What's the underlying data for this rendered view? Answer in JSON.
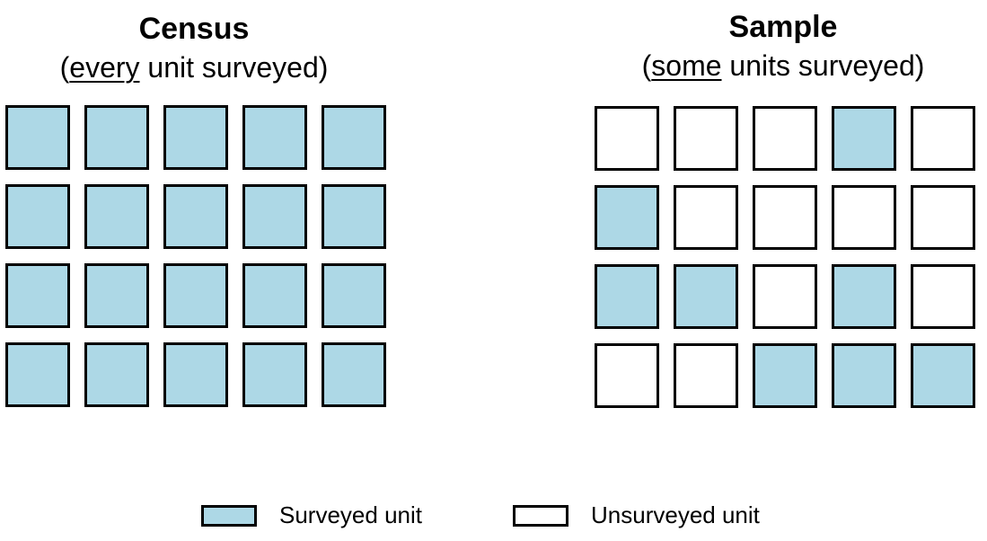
{
  "colors": {
    "surveyed": "#ADD8E6",
    "unsurveyed": "#FFFFFF",
    "outline": "#000000"
  },
  "census": {
    "title": "Census",
    "subtitle_open": "(",
    "subtitle_emph": "every",
    "subtitle_rest": " unit surveyed)",
    "grid": [
      [
        1,
        1,
        1,
        1,
        1
      ],
      [
        1,
        1,
        1,
        1,
        1
      ],
      [
        1,
        1,
        1,
        1,
        1
      ],
      [
        1,
        1,
        1,
        1,
        1
      ]
    ]
  },
  "sample": {
    "title": "Sample",
    "subtitle_open": "(",
    "subtitle_emph": "some",
    "subtitle_rest": " units surveyed)",
    "grid": [
      [
        0,
        0,
        0,
        1,
        0
      ],
      [
        1,
        0,
        0,
        0,
        0
      ],
      [
        1,
        1,
        0,
        1,
        0
      ],
      [
        0,
        0,
        1,
        1,
        1
      ]
    ]
  },
  "legend": {
    "surveyed_label": "Surveyed unit",
    "unsurveyed_label": "Unsurveyed unit"
  }
}
